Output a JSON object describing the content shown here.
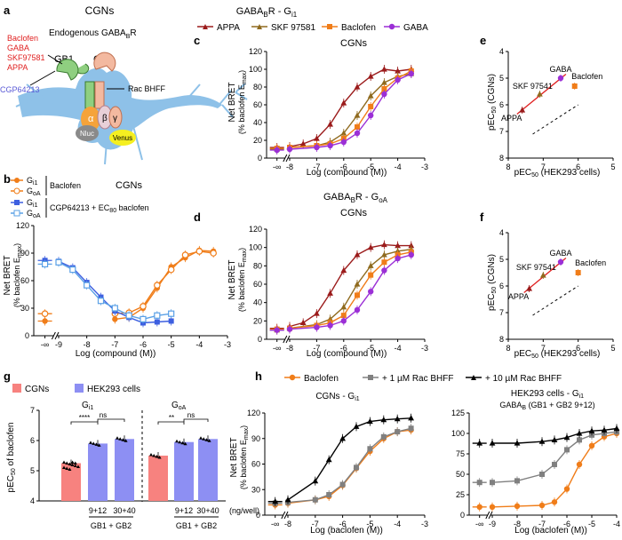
{
  "colors": {
    "appa": "#9b1b1b",
    "skf": "#8f6a1e",
    "baclofen": "#f07d19",
    "gaba": "#9b2fd6",
    "gi": "#f07d19",
    "goa": "#f07d19",
    "cgp_gi": "#3d5fe0",
    "cgp_goa": "#5aa0e6",
    "cgn_bar": "#f7827f",
    "hek_bar": "#8d8ff3",
    "rac1": "#808080",
    "rac10": "#000000",
    "neuron": "#8ec1e8",
    "fit": "#e02020"
  },
  "panel_a": {
    "letter": "a",
    "title": "CGNs",
    "receptor_label": "Endogenous GABA",
    "receptor_sub": "B",
    "receptor_tail": "R",
    "gb1": "GB1",
    "gb2": "GB2",
    "agonists": [
      "Baclofen",
      "GABA",
      "SKF97581",
      "APPA"
    ],
    "antagonist": "CGP64213",
    "pam": "Rac BHFF",
    "alpha": "α",
    "beta": "β",
    "gamma": "γ",
    "nluc": "Nluc",
    "venus": "Venus"
  },
  "panel_b": {
    "letter": "b",
    "title": "CGNs",
    "legend": [
      {
        "label": "G",
        "sub": "i1",
        "group": "Baclofen"
      },
      {
        "label": "G",
        "sub": "oA",
        "group": ""
      },
      {
        "label": "G",
        "sub": "i1",
        "group": "CGP64213 + EC80 baclofen"
      },
      {
        "label": "G",
        "sub": "oA",
        "group": ""
      }
    ],
    "group1": "Baclofen",
    "group2": "CGP64213 + EC",
    "group2_sub": "80",
    "group2_tail": " baclofen",
    "ylabel1": "Net BRET",
    "ylabel2": "(% baclofen E",
    "ylabel2_sub": "max",
    "ylabel2_tail": ")",
    "xlabel": "Log (compound (M))",
    "yticks": [
      "0",
      "30",
      "60",
      "90",
      "120"
    ],
    "xticks": [
      "-∞",
      "-9",
      "-8",
      "-7",
      "-6",
      "-5",
      "-4",
      "-3"
    ]
  },
  "panel_c": {
    "letter": "c",
    "title": "CGNs",
    "header": "GABA",
    "header_sub": "B",
    "header_tail": "R - G",
    "header_tail_sub": "i1",
    "legend": [
      "APPA",
      "SKF 97581",
      "Baclofen",
      "GABA"
    ],
    "ylabel1": "Net BRET",
    "ylabel2": "(% baclofen E",
    "ylabel2_sub": "max",
    "ylabel2_tail": ")",
    "xlabel": "Log (compound (M))",
    "yticks": [
      "0",
      "20",
      "40",
      "60",
      "80",
      "100",
      "120"
    ],
    "xticks": [
      "-∞",
      "-8",
      "-7",
      "-6",
      "-5",
      "-4",
      "-3"
    ]
  },
  "panel_d": {
    "letter": "d",
    "title": "CGNs",
    "header": "GABA",
    "header_sub": "B",
    "header_tail": "R - G",
    "header_tail_sub": "oA",
    "ylabel1": "Net BRET",
    "ylabel2": "(% baclofen E",
    "ylabel2_sub": "max",
    "ylabel2_tail": ")",
    "xlabel": "Log (compound (M))",
    "yticks": [
      "0",
      "20",
      "40",
      "60",
      "80",
      "100",
      "120"
    ],
    "xticks": [
      "-∞",
      "-8",
      "-7",
      "-6",
      "-5",
      "-4",
      "-3"
    ]
  },
  "panel_e": {
    "letter": "e",
    "ylabel": "pEC",
    "ylabel_sub": "50",
    "ylabel_tail": " (CGNs)",
    "xlabel": "pEC",
    "xlabel_sub": "50",
    "xlabel_tail": " (HEK293 cells)",
    "yticks": [
      "4",
      "5",
      "6",
      "7",
      "8"
    ],
    "xticks": [
      "8",
      "7",
      "6",
      "5"
    ],
    "labels": [
      "APPA",
      "SKF 97541",
      "GABA",
      "Baclofen"
    ]
  },
  "panel_f": {
    "letter": "f",
    "ylabel": "pEC",
    "ylabel_sub": "50",
    "ylabel_tail": " (CGNs)",
    "xlabel": "pEC",
    "xlabel_sub": "50",
    "xlabel_tail": " (HEK293 cells)",
    "yticks": [
      "4",
      "5",
      "6",
      "7",
      "8"
    ],
    "xticks": [
      "8",
      "7",
      "6",
      "5"
    ],
    "labels": [
      "APPA",
      "SKF 97541",
      "GABA",
      "Baclofen"
    ]
  },
  "panel_g": {
    "letter": "g",
    "legend": [
      "CGNs",
      "HEK293 cells"
    ],
    "ylabel": "pEC",
    "ylabel_sub": "50",
    "ylabel_tail": " of baclofen",
    "yticks": [
      "4",
      "5",
      "6",
      "7"
    ],
    "group1": "G",
    "group1_sub": "i1",
    "group2": "G",
    "group2_sub": "oA",
    "sig": [
      "****",
      "ns",
      "**",
      "ns"
    ],
    "xcat": [
      "9+12",
      "30+40",
      "9+12",
      "30+40"
    ],
    "xunit": "(ng/well)",
    "xgroup": "GB1 + GB2"
  },
  "panel_h": {
    "letter": "h",
    "legend": [
      "Baclofen",
      "+ 1 µM Rac BHFF",
      "+ 10 µM Rac BHFF"
    ],
    "left_title": "CGNs - G",
    "left_title_sub": "i1",
    "right_title1": "HEK293 cells - G",
    "right_title1_sub": "i1",
    "right_title2": "GABA",
    "right_title2_sub": "B",
    "right_title2_tail": " (GB1 + GB2 9+12)",
    "ylabel1": "Net BRET",
    "ylabel2": "(% baclofen E",
    "ylabel2_sub": "max",
    "ylabel2_tail": ")",
    "xlabel": "Log (baclofen (M))",
    "left_yticks": [
      "0",
      "30",
      "60",
      "90",
      "120"
    ],
    "right_yticks": [
      "0",
      "25",
      "50",
      "75",
      "100",
      "125"
    ],
    "left_xticks": [
      "-∞",
      "-8",
      "-7",
      "-6",
      "-5",
      "-4",
      "-3"
    ],
    "right_xticks": [
      "-∞",
      "-9",
      "-8",
      "-7",
      "-6",
      "-5",
      "-4"
    ]
  },
  "chart_data": [
    {
      "panel": "b",
      "type": "line",
      "title": "CGNs",
      "xlabel": "Log (compound (M))",
      "ylabel": "Net BRET (% baclofen Emax)",
      "xlim": [
        -9,
        -3
      ],
      "ylim": [
        0,
        120
      ],
      "series": [
        {
          "name": "Gi1 Baclofen",
          "x": [
            -10,
            -7,
            -6.5,
            -6,
            -5.5,
            -5,
            -4.5,
            -4,
            -3.5
          ],
          "y": [
            16,
            18,
            20,
            30,
            52,
            75,
            85,
            93,
            92
          ]
        },
        {
          "name": "GoA Baclofen",
          "x": [
            -10,
            -7,
            -6.5,
            -6,
            -5.5,
            -5,
            -4.5,
            -4,
            -3.5
          ],
          "y": [
            24,
            24,
            25,
            32,
            55,
            72,
            88,
            92,
            90
          ]
        },
        {
          "name": "Gi1 CGP64213 + EC80 baclofen",
          "x": [
            -10,
            -9,
            -8.5,
            -8,
            -7.5,
            -7,
            -6.5,
            -6,
            -5.5,
            -5
          ],
          "y": [
            82,
            81,
            74,
            58,
            42,
            27,
            20,
            14,
            15,
            16
          ]
        },
        {
          "name": "GoA CGP64213 + EC80 baclofen",
          "x": [
            -10,
            -9,
            -8.5,
            -8,
            -7.5,
            -7,
            -6.5,
            -6,
            -5.5,
            -5
          ],
          "y": [
            78,
            80,
            72,
            55,
            38,
            30,
            22,
            18,
            22,
            24
          ]
        }
      ]
    },
    {
      "panel": "c",
      "type": "line",
      "title": "CGNs GABABR - Gi1",
      "xlabel": "Log (compound (M))",
      "ylabel": "Net BRET (% baclofen Emax)",
      "xlim": [
        -8,
        -3
      ],
      "ylim": [
        0,
        120
      ],
      "series": [
        {
          "name": "APPA",
          "x": [
            -9,
            -8,
            -7.5,
            -7,
            -6.5,
            -6,
            -5.5,
            -5,
            -4.5,
            -4,
            -3.5
          ],
          "y": [
            12,
            13,
            16,
            22,
            38,
            62,
            80,
            92,
            100,
            98,
            100
          ]
        },
        {
          "name": "SKF 97581",
          "x": [
            -9,
            -8,
            -7,
            -6.5,
            -6,
            -5.5,
            -5,
            -4.5,
            -4,
            -3.5
          ],
          "y": [
            10,
            12,
            14,
            18,
            28,
            48,
            70,
            85,
            92,
            95
          ]
        },
        {
          "name": "Baclofen",
          "x": [
            -9,
            -8,
            -7,
            -6.5,
            -6,
            -5.5,
            -5,
            -4.5,
            -4,
            -3.5
          ],
          "y": [
            11,
            12,
            14,
            16,
            22,
            35,
            58,
            78,
            90,
            98
          ]
        },
        {
          "name": "GABA",
          "x": [
            -9,
            -8,
            -7,
            -6.5,
            -6,
            -5.5,
            -5,
            -4.5,
            -4,
            -3.5
          ],
          "y": [
            9,
            10,
            12,
            14,
            18,
            28,
            48,
            72,
            88,
            95
          ]
        }
      ]
    },
    {
      "panel": "d",
      "type": "line",
      "title": "CGNs GABABR - GoA",
      "xlabel": "Log (compound (M))",
      "ylabel": "Net BRET (% baclofen Emax)",
      "xlim": [
        -8,
        -3
      ],
      "ylim": [
        0,
        120
      ],
      "series": [
        {
          "name": "APPA",
          "x": [
            -9,
            -8,
            -7.5,
            -7,
            -6.5,
            -6,
            -5.5,
            -5,
            -4.5,
            -4,
            -3.5
          ],
          "y": [
            12,
            14,
            18,
            28,
            50,
            75,
            92,
            100,
            103,
            102,
            102
          ]
        },
        {
          "name": "SKF 97581",
          "x": [
            -9,
            -8,
            -7,
            -6.5,
            -6,
            -5.5,
            -5,
            -4.5,
            -4,
            -3.5
          ],
          "y": [
            10,
            12,
            16,
            22,
            35,
            60,
            80,
            92,
            96,
            98
          ]
        },
        {
          "name": "Baclofen",
          "x": [
            -9,
            -8,
            -7,
            -6.5,
            -6,
            -5.5,
            -5,
            -4.5,
            -4,
            -3.5
          ],
          "y": [
            11,
            12,
            15,
            18,
            26,
            48,
            70,
            84,
            92,
            95
          ]
        },
        {
          "name": "GABA",
          "x": [
            -9,
            -8,
            -7,
            -6.5,
            -6,
            -5.5,
            -5,
            -4.5,
            -4,
            -3.5
          ],
          "y": [
            10,
            11,
            13,
            15,
            20,
            32,
            52,
            75,
            88,
            92
          ]
        }
      ]
    },
    {
      "panel": "e",
      "type": "scatter",
      "xlabel": "pEC50 (HEK293 cells)",
      "ylabel": "pEC50 (CGNs)",
      "xlim": [
        8,
        5
      ],
      "ylim": [
        8,
        4
      ],
      "points": [
        {
          "name": "APPA",
          "x": 7.6,
          "y": 6.2
        },
        {
          "name": "SKF 97541",
          "x": 7.1,
          "y": 5.6
        },
        {
          "name": "GABA",
          "x": 6.5,
          "y": 5.0
        },
        {
          "name": "Baclofen",
          "x": 6.1,
          "y": 5.3
        }
      ]
    },
    {
      "panel": "f",
      "type": "scatter",
      "xlabel": "pEC50 (HEK293 cells)",
      "ylabel": "pEC50 (CGNs)",
      "xlim": [
        8,
        5
      ],
      "ylim": [
        8,
        4
      ],
      "points": [
        {
          "name": "APPA",
          "x": 7.4,
          "y": 6.1
        },
        {
          "name": "SKF 97541",
          "x": 7.0,
          "y": 5.6
        },
        {
          "name": "GABA",
          "x": 6.5,
          "y": 5.1
        },
        {
          "name": "Baclofen",
          "x": 6.0,
          "y": 5.5
        }
      ]
    },
    {
      "panel": "g",
      "type": "bar",
      "ylabel": "pEC50 of baclofen",
      "ylim": [
        4,
        7
      ],
      "categories": [
        "Gi1 CGNs",
        "Gi1 HEK 9+12",
        "Gi1 HEK 30+40",
        "GoA CGNs",
        "GoA HEK 9+12",
        "GoA HEK 30+40"
      ],
      "values": [
        5.25,
        5.9,
        6.05,
        5.5,
        5.95,
        6.05
      ]
    },
    {
      "panel": "h-left",
      "type": "line",
      "title": "CGNs - Gi1",
      "xlabel": "Log (baclofen (M))",
      "ylabel": "Net BRET (% baclofen Emax)",
      "xlim": [
        -8,
        -3
      ],
      "ylim": [
        0,
        120
      ],
      "series": [
        {
          "name": "Baclofen",
          "x": [
            -9,
            -8,
            -7,
            -6.5,
            -6,
            -5.5,
            -5,
            -4.5,
            -4,
            -3.5
          ],
          "y": [
            12,
            14,
            18,
            22,
            35,
            55,
            75,
            90,
            98,
            100
          ]
        },
        {
          "name": "+ 1 µM Rac BHFF",
          "x": [
            -9,
            -8,
            -7,
            -6.5,
            -6,
            -5.5,
            -5,
            -4.5,
            -4,
            -3.5
          ],
          "y": [
            14,
            15,
            18,
            24,
            36,
            56,
            78,
            92,
            98,
            102
          ]
        },
        {
          "name": "+ 10 µM Rac BHFF",
          "x": [
            -9,
            -8,
            -7,
            -6.5,
            -6,
            -5.5,
            -5,
            -4.5,
            -4,
            -3.5
          ],
          "y": [
            16,
            18,
            40,
            65,
            90,
            104,
            110,
            112,
            113,
            114
          ]
        }
      ]
    },
    {
      "panel": "h-right",
      "type": "line",
      "title": "HEK293 cells - Gi1 GABAB (GB1 + GB2 9+12)",
      "xlabel": "Log (baclofen (M))",
      "ylabel": "Net BRET (% baclofen Emax)",
      "xlim": [
        -9,
        -4
      ],
      "ylim": [
        0,
        125
      ],
      "series": [
        {
          "name": "Baclofen",
          "x": [
            -10,
            -9,
            -8,
            -7,
            -6.5,
            -6,
            -5.5,
            -5,
            -4.5,
            -4
          ],
          "y": [
            10,
            10,
            11,
            12,
            16,
            32,
            62,
            85,
            96,
            100
          ]
        },
        {
          "name": "+ 1 µM Rac BHFF",
          "x": [
            -10,
            -9,
            -8,
            -7,
            -6.5,
            -6,
            -5.5,
            -5,
            -4.5,
            -4
          ],
          "y": [
            40,
            40,
            42,
            50,
            62,
            80,
            92,
            98,
            100,
            102
          ]
        },
        {
          "name": "+ 10 µM Rac BHFF",
          "x": [
            -10,
            -9,
            -8,
            -7,
            -6.5,
            -6,
            -5.5,
            -5,
            -4.5,
            -4
          ],
          "y": [
            88,
            88,
            88,
            90,
            92,
            95,
            100,
            103,
            104,
            106
          ]
        }
      ]
    }
  ]
}
